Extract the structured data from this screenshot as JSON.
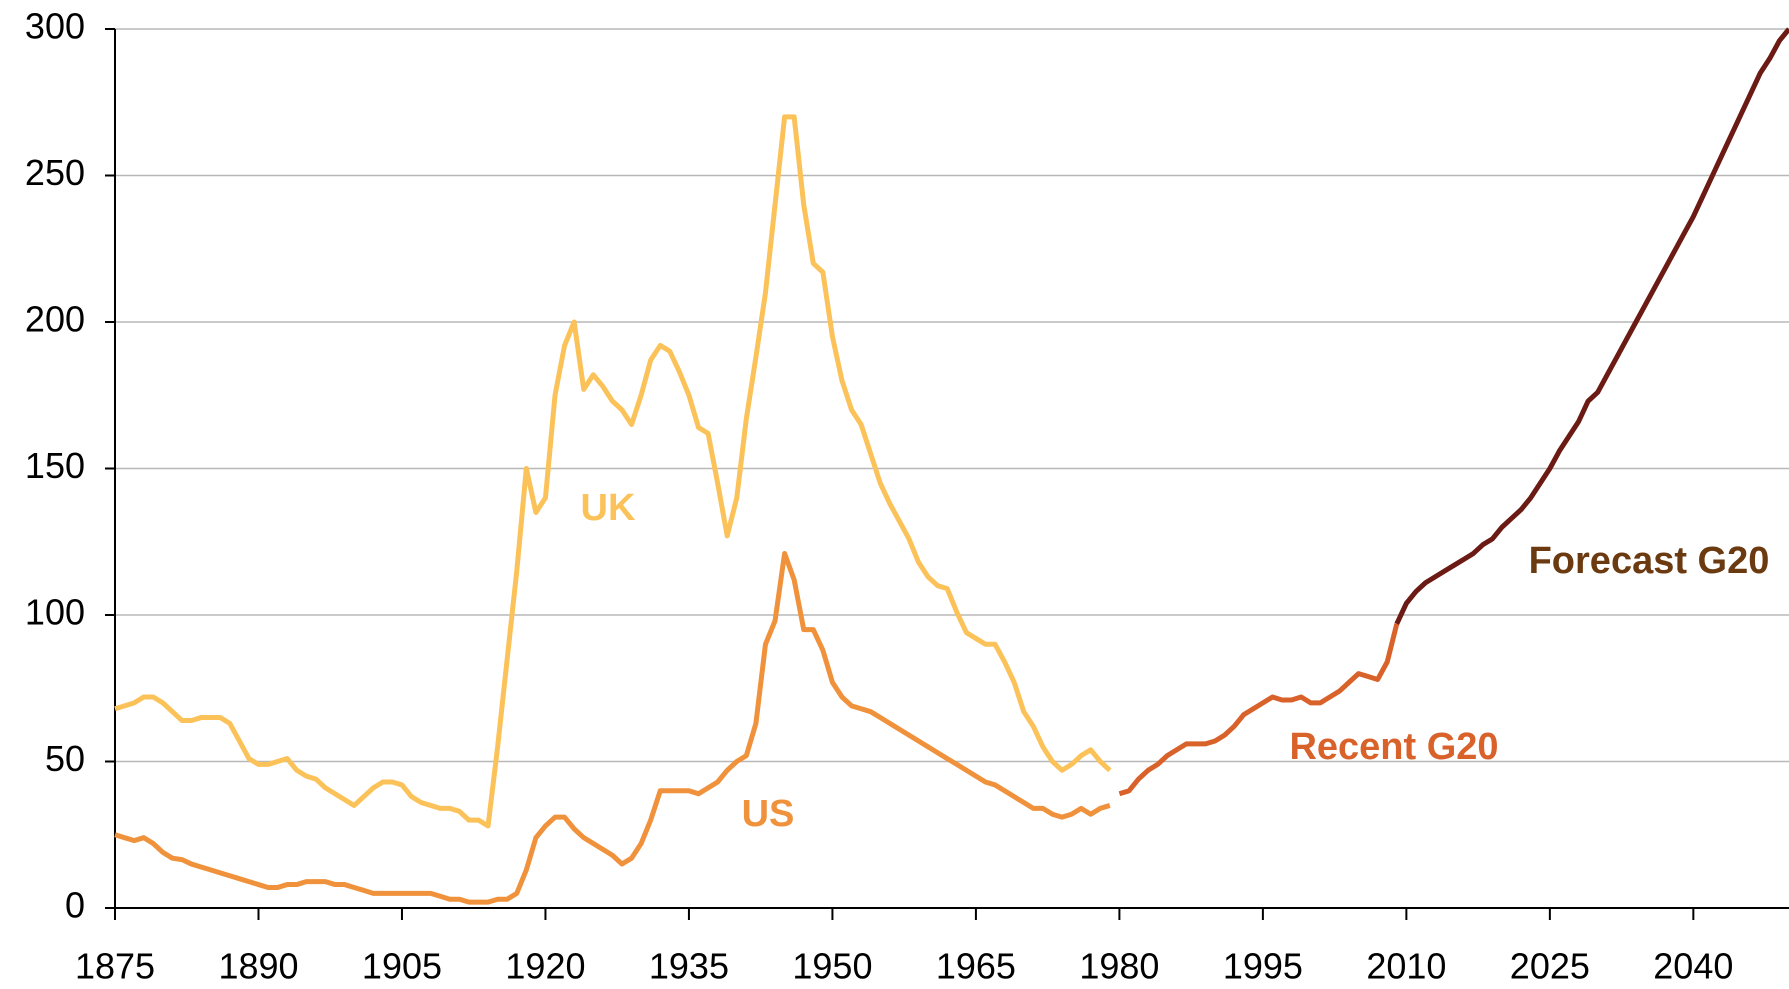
{
  "chart_data": {
    "type": "line",
    "xlim": [
      1875,
      2050
    ],
    "ylim": [
      0,
      300
    ],
    "xticks": [
      1875,
      1890,
      1905,
      1920,
      1935,
      1950,
      1965,
      1980,
      1995,
      2010,
      2025,
      2040
    ],
    "yticks": [
      0,
      50,
      100,
      150,
      200,
      250,
      300
    ],
    "grid": true,
    "series": [
      {
        "name": "UK",
        "color": "#fbc25a",
        "x": [
          1875,
          1876,
          1877,
          1878,
          1879,
          1880,
          1881,
          1882,
          1883,
          1884,
          1885,
          1886,
          1887,
          1888,
          1889,
          1890,
          1891,
          1892,
          1893,
          1894,
          1895,
          1896,
          1897,
          1898,
          1899,
          1900,
          1901,
          1902,
          1903,
          1904,
          1905,
          1906,
          1907,
          1908,
          1909,
          1910,
          1911,
          1912,
          1913,
          1914,
          1915,
          1916,
          1917,
          1918,
          1919,
          1920,
          1921,
          1922,
          1923,
          1924,
          1925,
          1926,
          1927,
          1928,
          1929,
          1930,
          1931,
          1932,
          1933,
          1934,
          1935,
          1936,
          1937,
          1938,
          1939,
          1940,
          1941,
          1942,
          1943,
          1944,
          1945,
          1946,
          1947,
          1948,
          1949,
          1950,
          1951,
          1952,
          1953,
          1954,
          1955,
          1956,
          1957,
          1958,
          1959,
          1960,
          1961,
          1962,
          1963,
          1964,
          1965,
          1966,
          1967,
          1968,
          1969,
          1970,
          1971,
          1972,
          1973,
          1974,
          1975,
          1976,
          1977,
          1978,
          1979
        ],
        "values": [
          68,
          69,
          70,
          72,
          72,
          70,
          67,
          64,
          64,
          65,
          65,
          65,
          63,
          57,
          51,
          49,
          49,
          50,
          51,
          47,
          45,
          44,
          41,
          39,
          37,
          35,
          38,
          41,
          43,
          43,
          42,
          38,
          36,
          35,
          34,
          34,
          33,
          30,
          30,
          28,
          55,
          85,
          115,
          150,
          135,
          140,
          175,
          192,
          200,
          177,
          182,
          178,
          173,
          170,
          165,
          175,
          187,
          192,
          190,
          183,
          175,
          164,
          162,
          145,
          127,
          140,
          167,
          188,
          210,
          240,
          270,
          270,
          240,
          220,
          217,
          195,
          180,
          170,
          165,
          155,
          145,
          138,
          132,
          126,
          118,
          113,
          110,
          109,
          101,
          94,
          92,
          90,
          90,
          84,
          77,
          67,
          62,
          55,
          50,
          47,
          49,
          52,
          54,
          50,
          47
        ]
      },
      {
        "name": "US",
        "color": "#f0913c",
        "x": [
          1875,
          1876,
          1877,
          1878,
          1879,
          1880,
          1881,
          1882,
          1883,
          1884,
          1885,
          1886,
          1887,
          1888,
          1889,
          1890,
          1891,
          1892,
          1893,
          1894,
          1895,
          1896,
          1897,
          1898,
          1899,
          1900,
          1901,
          1902,
          1903,
          1904,
          1905,
          1906,
          1907,
          1908,
          1909,
          1910,
          1911,
          1912,
          1913,
          1914,
          1915,
          1916,
          1917,
          1918,
          1919,
          1920,
          1921,
          1922,
          1923,
          1924,
          1925,
          1926,
          1927,
          1928,
          1929,
          1930,
          1931,
          1932,
          1933,
          1934,
          1935,
          1936,
          1937,
          1938,
          1939,
          1940,
          1941,
          1942,
          1943,
          1944,
          1945,
          1946,
          1947,
          1948,
          1949,
          1950,
          1951,
          1952,
          1953,
          1954,
          1955,
          1956,
          1957,
          1958,
          1959,
          1960,
          1961,
          1962,
          1963,
          1964,
          1965,
          1966,
          1967,
          1968,
          1969,
          1970,
          1971,
          1972,
          1973,
          1974,
          1975,
          1976,
          1977,
          1978,
          1979
        ],
        "values": [
          25,
          24,
          23,
          24,
          22,
          19,
          17,
          16.5,
          15,
          14,
          13,
          12,
          11,
          10,
          9,
          8,
          7,
          7,
          8,
          8,
          9,
          9,
          9,
          8,
          8,
          7,
          6,
          5,
          5,
          5,
          5,
          5,
          5,
          5,
          4,
          3,
          3,
          2,
          2,
          2,
          3,
          3,
          5,
          13,
          24,
          28,
          31,
          31,
          27,
          24,
          22,
          20,
          18,
          15,
          17,
          22,
          30,
          40,
          40,
          40,
          40,
          39,
          41,
          43,
          47,
          50,
          52,
          63,
          90,
          98,
          121,
          112,
          95,
          95,
          88,
          77,
          72,
          69,
          68,
          67,
          65,
          63,
          61,
          59,
          57,
          55,
          53,
          51,
          49,
          47,
          45,
          43,
          42,
          40,
          38,
          36,
          34,
          34,
          32,
          31,
          32,
          34,
          32,
          34,
          35
        ]
      },
      {
        "name": "Recent G20",
        "color": "#d9622b",
        "x": [
          1980,
          1981,
          1982,
          1983,
          1984,
          1985,
          1986,
          1987,
          1988,
          1989,
          1990,
          1991,
          1992,
          1993,
          1994,
          1995,
          1996,
          1997,
          1998,
          1999,
          2000,
          2001,
          2002,
          2003,
          2004,
          2005,
          2006,
          2007,
          2008,
          2009
        ],
        "values": [
          39,
          40,
          44,
          47,
          49,
          52,
          54,
          56,
          56,
          56,
          57,
          59,
          62,
          66,
          68,
          70,
          72,
          71,
          71,
          72,
          70,
          70,
          72,
          74,
          77,
          80,
          79,
          78,
          84,
          97
        ]
      },
      {
        "name": "Forecast G20",
        "color": "#6b1a14",
        "x": [
          2009,
          2010,
          2011,
          2012,
          2013,
          2014,
          2015,
          2016,
          2017,
          2018,
          2019,
          2020,
          2021,
          2022,
          2023,
          2024,
          2025,
          2026,
          2027,
          2028,
          2029,
          2030,
          2031,
          2032,
          2033,
          2034,
          2035,
          2036,
          2037,
          2038,
          2039,
          2040,
          2041,
          2042,
          2043,
          2044,
          2045,
          2046,
          2047,
          2048,
          2049,
          2050
        ],
        "values": [
          97,
          104,
          108,
          111,
          113,
          115,
          117,
          119,
          121,
          124,
          126,
          130,
          133,
          136,
          140,
          145,
          150,
          156,
          161,
          166,
          173,
          176,
          182,
          188,
          194,
          200,
          206,
          212,
          218,
          224,
          230,
          236,
          243,
          250,
          257,
          264,
          271,
          278,
          285,
          290,
          296,
          300
        ]
      }
    ]
  }
}
